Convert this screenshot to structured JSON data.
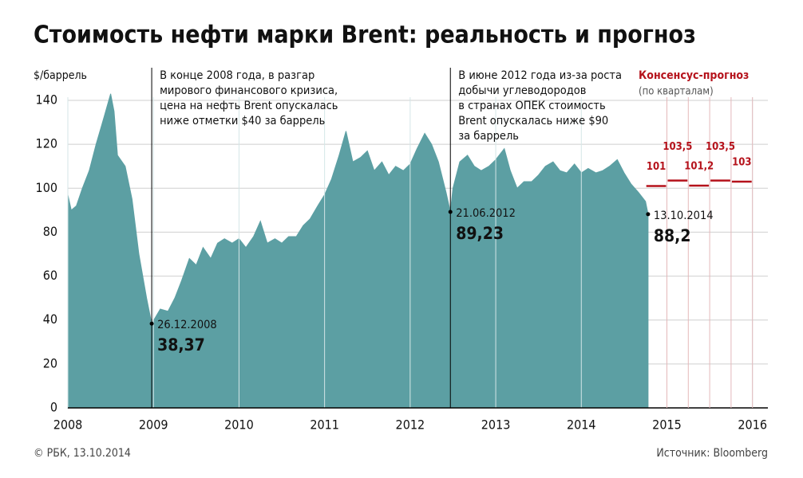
{
  "chart_data": {
    "type": "area",
    "title": "Стоимость нефти марки Brent: реальность и прогноз",
    "y_label": "$/баррель",
    "color": "#5c9fa3",
    "x": [
      2008.0,
      2008.04,
      2008.1,
      2008.17,
      2008.25,
      2008.33,
      2008.42,
      2008.5,
      2008.54,
      2008.58,
      2008.67,
      2008.75,
      2008.83,
      2008.92,
      2008.98,
      2009.08,
      2009.17,
      2009.25,
      2009.33,
      2009.42,
      2009.5,
      2009.58,
      2009.67,
      2009.75,
      2009.83,
      2009.92,
      2010.0,
      2010.08,
      2010.17,
      2010.25,
      2010.33,
      2010.42,
      2010.5,
      2010.58,
      2010.67,
      2010.75,
      2010.83,
      2010.92,
      2011.0,
      2011.08,
      2011.17,
      2011.25,
      2011.33,
      2011.42,
      2011.5,
      2011.58,
      2011.67,
      2011.75,
      2011.83,
      2011.92,
      2012.0,
      2012.08,
      2012.17,
      2012.25,
      2012.33,
      2012.42,
      2012.47,
      2012.5,
      2012.58,
      2012.67,
      2012.75,
      2012.83,
      2012.92,
      2013.0,
      2013.1,
      2013.17,
      2013.25,
      2013.33,
      2013.42,
      2013.5,
      2013.58,
      2013.67,
      2013.75,
      2013.83,
      2013.92,
      2014.0,
      2014.08,
      2014.17,
      2014.25,
      2014.33,
      2014.42,
      2014.5,
      2014.58,
      2014.67,
      2014.75,
      2014.78
    ],
    "values": [
      97,
      90,
      92,
      100,
      108,
      120,
      132,
      143,
      135,
      115,
      110,
      95,
      70,
      50,
      38.37,
      45,
      44,
      50,
      58,
      68,
      65,
      73,
      68,
      75,
      77,
      75,
      77,
      73,
      78,
      85,
      75,
      77,
      75,
      78,
      78,
      83,
      86,
      92,
      97,
      104,
      115,
      126,
      112,
      114,
      117,
      108,
      112,
      106,
      110,
      108,
      111,
      118,
      125,
      120,
      112,
      98,
      89.23,
      100,
      112,
      115,
      110,
      108,
      110,
      113,
      118,
      108,
      100,
      103,
      103,
      106,
      110,
      112,
      108,
      107,
      111,
      107,
      109,
      107,
      108,
      110,
      113,
      107,
      102,
      98,
      94,
      88.2
    ],
    "xlim": [
      2008,
      2016.18
    ],
    "xticks": [
      2008,
      2009,
      2010,
      2011,
      2012,
      2013,
      2014,
      2015,
      2016
    ],
    "ylim": [
      0,
      140
    ],
    "yticks": [
      0,
      20,
      40,
      60,
      80,
      100,
      120,
      140
    ],
    "grid": true,
    "forecast": {
      "name": "Консенсус-прогноз",
      "subtitle": "(по кварталам)",
      "color": "#b5121b",
      "x_start": [
        2014.75,
        2015.0,
        2015.25,
        2015.5,
        2015.75
      ],
      "x_end": [
        2015.0,
        2015.25,
        2015.5,
        2015.75,
        2016.0
      ],
      "values": [
        101,
        103.5,
        101.2,
        103.5,
        103
      ],
      "value_labels": [
        "101",
        "103,5",
        "101,2",
        "103,5",
        "103"
      ]
    },
    "notes": [
      {
        "x": 2008.98,
        "lines": [
          "В конце 2008 года, в разгар",
          "мирового финансового кризиса,",
          "цена на нефть Brent опускалась",
          "ниже отметки $40 за баррель"
        ]
      },
      {
        "x": 2012.47,
        "lines": [
          "В июне 2012 года из-за роста",
          "добычи углеводородов",
          "в странах ОПЕК стоимость",
          "Brent опускалась ниже $90",
          "за баррель"
        ]
      }
    ],
    "highlights": [
      {
        "x": 2008.98,
        "date": "26.12.2008",
        "value": 38.37,
        "value_label": "38,37"
      },
      {
        "x": 2012.47,
        "date": "21.06.2012",
        "value": 89.23,
        "value_label": "89,23"
      },
      {
        "x": 2014.78,
        "date": "13.10.2014",
        "value": 88.2,
        "value_label": "88,2"
      }
    ],
    "footer_left": "© РБК, 13.10.2014",
    "footer_right": "Источник: Bloomberg"
  }
}
